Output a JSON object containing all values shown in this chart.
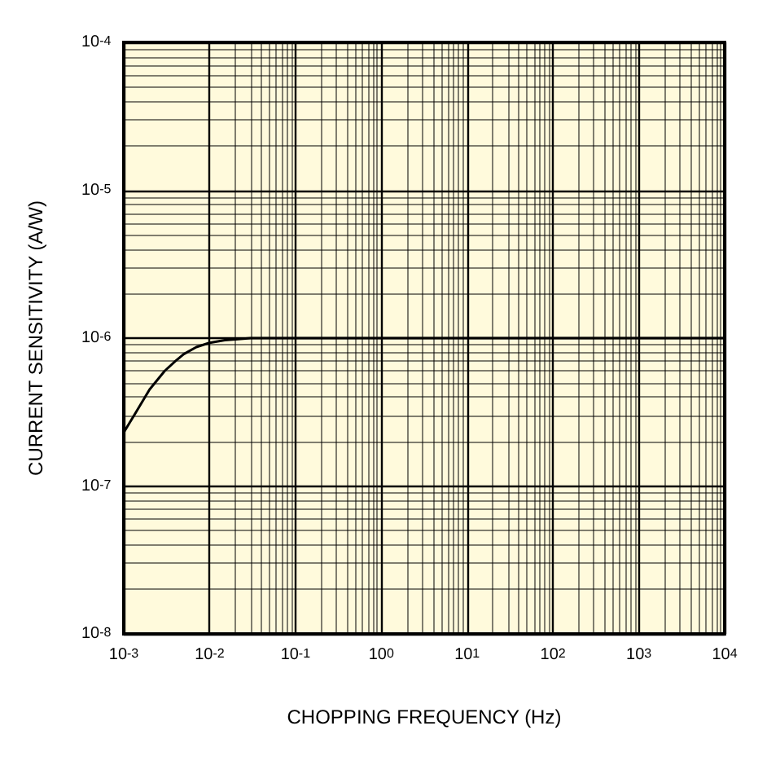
{
  "chart_data": {
    "type": "line",
    "xlabel": "CHOPPING FREQUENCY (Hz)",
    "ylabel": "CURRENT SENSITIVITY (A/W)",
    "log": "xy",
    "grid": true,
    "marker": "none",
    "line_style": "solid",
    "xlim": [
      0.001,
      10000
    ],
    "ylim": [
      1e-08,
      0.0001
    ],
    "xticks": [
      {
        "value": 0.001,
        "label": "10$^{-3}$"
      },
      {
        "value": 0.01,
        "label": "10$^{-2}$"
      },
      {
        "value": 0.1,
        "label": "10$^{-1}$"
      },
      {
        "value": 1,
        "label": "10$^{0}$"
      },
      {
        "value": 10,
        "label": "10$^{1}$"
      },
      {
        "value": 100,
        "label": "10$^{2}$"
      },
      {
        "value": 1000,
        "label": "10$^{3}$"
      },
      {
        "value": 10000,
        "label": "10$^{4}$"
      }
    ],
    "yticks": [
      {
        "value": 1e-08,
        "label": "10$^{-8}$"
      },
      {
        "value": 1e-07,
        "label": "10$^{-7}$"
      },
      {
        "value": 1e-06,
        "label": "10$^{-6}$"
      },
      {
        "value": 1e-05,
        "label": "10$^{-5}$"
      },
      {
        "value": 0.0001,
        "label": "10$^{-4}$"
      }
    ],
    "series": [
      {
        "color": "#000000",
        "x": [
          0.001,
          0.0015,
          0.002,
          0.003,
          0.004,
          0.005,
          0.007,
          0.01,
          0.015,
          0.02,
          0.03,
          0.05,
          0.1,
          1,
          10,
          100,
          1000,
          10000
        ],
        "values": [
          2.3e-07,
          3.4e-07,
          4.5e-07,
          6e-07,
          7e-07,
          7.8e-07,
          8.7e-07,
          9.3e-07,
          9.7e-07,
          9.8e-07,
          1e-06,
          1e-06,
          1e-06,
          1e-06,
          1e-06,
          1e-06,
          1e-06,
          1e-06
        ]
      }
    ]
  }
}
